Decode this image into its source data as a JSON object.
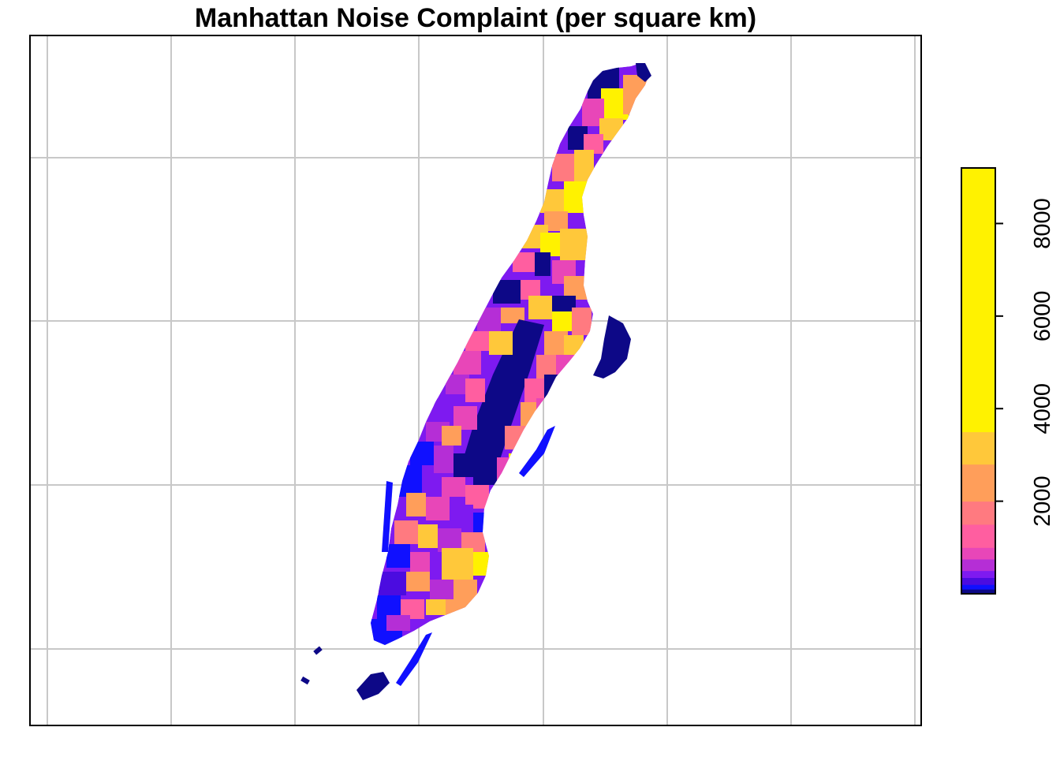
{
  "title": "Manhattan Noise Complaint (per square km)",
  "legend": {
    "ticks": [
      2000,
      4000,
      6000,
      8000
    ],
    "tick_labels": [
      "2000",
      "4000",
      "6000",
      "8000"
    ],
    "range": [
      0,
      9200
    ],
    "breaks": [
      0,
      100,
      200,
      350,
      500,
      750,
      1000,
      1500,
      2000,
      2800,
      3500,
      9200
    ],
    "colors": [
      "#0D0887",
      "#1010FF",
      "#4B0CE0",
      "#7E1AF0",
      "#B52ED6",
      "#E846B8",
      "#FF5EA0",
      "#FF7A80",
      "#FF9E5A",
      "#FFC83A",
      "#FFF200"
    ]
  },
  "background_color": "#FFFFFF",
  "grid_color": "#C8C8C8",
  "water_color": "#FFFFFF"
}
